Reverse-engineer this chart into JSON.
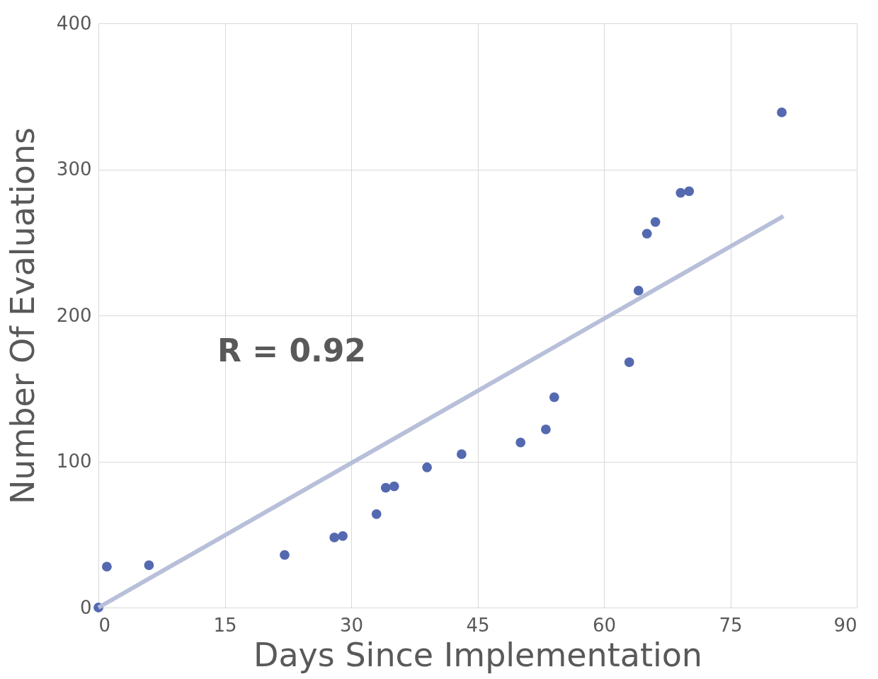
{
  "chart_data": {
    "type": "scatter",
    "xlabel": "Days Since Implementation",
    "ylabel": "Number Of Evaluations",
    "xlim": [
      0,
      90
    ],
    "xticks": [
      0,
      15,
      30,
      45,
      60,
      75,
      90
    ],
    "ylim": [
      0,
      400
    ],
    "yticks": [
      0,
      100,
      200,
      300,
      400
    ],
    "grid": true,
    "annotations": [
      "R = 0.92"
    ],
    "series": [
      {
        "marker": "circle",
        "color": "#5469b0",
        "x": [
          0,
          1,
          6,
          22.1,
          28,
          29,
          33,
          34.1,
          35.1,
          39,
          43.1,
          50.1,
          53.1,
          54.1,
          63,
          64.1,
          65.1,
          66.1,
          69.1,
          70.1,
          81.1
        ],
        "values": [
          0,
          28,
          29,
          36,
          48,
          49,
          64,
          82,
          83,
          96,
          105,
          113,
          122,
          144,
          168,
          217,
          256,
          264,
          284,
          285,
          339
        ]
      },
      {
        "type": "line",
        "marker": "none",
        "color": "#b7bfd9",
        "x": [
          0,
          81.3
        ],
        "values": [
          0,
          268
        ]
      }
    ]
  }
}
